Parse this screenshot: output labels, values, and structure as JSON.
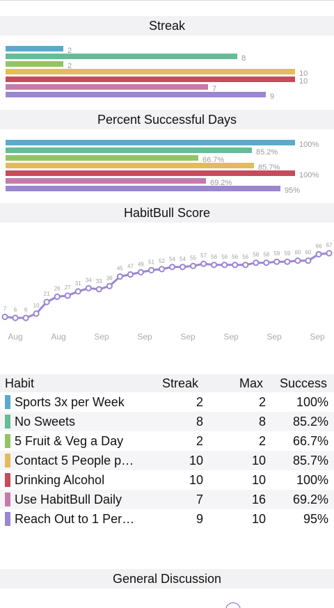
{
  "sections": {
    "streak_title": "Streak",
    "percent_title": "Percent Successful Days",
    "score_title": "HabitBull Score",
    "discussion_title": "General Discussion"
  },
  "colors": {
    "blue": "#5ca9cb",
    "teal": "#65bc97",
    "green": "#92c464",
    "yellow": "#e3bb5c",
    "red": "#c64b5c",
    "pink": "#c67aaa",
    "purple": "#9b86d1",
    "line": "#9b86d1"
  },
  "streak_chart": {
    "type": "bar",
    "max": 10,
    "bars": [
      {
        "value": 2,
        "label": "2",
        "color": "#5ca9cb"
      },
      {
        "value": 8,
        "label": "8",
        "color": "#65bc97"
      },
      {
        "value": 2,
        "label": "2",
        "color": "#92c464"
      },
      {
        "value": 10,
        "label": "10",
        "color": "#e3bb5c"
      },
      {
        "value": 10,
        "label": "10",
        "color": "#c64b5c"
      },
      {
        "value": 7,
        "label": "7",
        "color": "#c67aaa"
      },
      {
        "value": 9,
        "label": "9",
        "color": "#9b86d1"
      }
    ]
  },
  "percent_chart": {
    "type": "bar",
    "max": 100,
    "bars": [
      {
        "value": 100,
        "label": "100%",
        "color": "#5ca9cb"
      },
      {
        "value": 85.2,
        "label": "85.2%",
        "color": "#65bc97"
      },
      {
        "value": 66.7,
        "label": "66.7%",
        "color": "#92c464"
      },
      {
        "value": 85.7,
        "label": "85.7%",
        "color": "#e3bb5c"
      },
      {
        "value": 100,
        "label": "100%",
        "color": "#c64b5c"
      },
      {
        "value": 69.2,
        "label": "69.2%",
        "color": "#c67aaa"
      },
      {
        "value": 95,
        "label": "95%",
        "color": "#9b86d1"
      }
    ]
  },
  "chart_data": {
    "type": "line",
    "title": "HabitBull Score",
    "values": [
      7,
      6,
      6,
      10,
      21,
      26,
      27,
      31,
      34,
      33,
      36,
      45,
      47,
      49,
      51,
      52,
      54,
      54,
      55,
      57,
      56,
      56,
      56,
      56,
      58,
      58,
      59,
      59,
      60,
      60,
      66,
      67
    ],
    "x_tick_labels": [
      "Aug",
      "Aug",
      "Sep",
      "Sep",
      "Sep",
      "Sep",
      "Sep",
      "Sep"
    ],
    "ylim": [
      0,
      70
    ]
  },
  "table": {
    "headers": {
      "habit": "Habit",
      "streak": "Streak",
      "max": "Max",
      "success": "Success"
    },
    "rows": [
      {
        "name": "Sports 3x per Week",
        "streak": "2",
        "max": "2",
        "success": "100%",
        "color": "#5ca9cb"
      },
      {
        "name": "No Sweets",
        "streak": "8",
        "max": "8",
        "success": "85.2%",
        "color": "#65bc97"
      },
      {
        "name": "5 Fruit & Veg a Day",
        "streak": "2",
        "max": "2",
        "success": "66.7%",
        "color": "#92c464"
      },
      {
        "name": "Contact 5 People p…",
        "streak": "10",
        "max": "10",
        "success": "85.7%",
        "color": "#e3bb5c"
      },
      {
        "name": "Drinking Alcohol",
        "streak": "10",
        "max": "10",
        "success": "100%",
        "color": "#c64b5c"
      },
      {
        "name": "Use HabitBull Daily",
        "streak": "7",
        "max": "16",
        "success": "69.2%",
        "color": "#c67aaa"
      },
      {
        "name": "Reach Out to 1 Per…",
        "streak": "9",
        "max": "10",
        "success": "95%",
        "color": "#9b86d1"
      }
    ]
  }
}
